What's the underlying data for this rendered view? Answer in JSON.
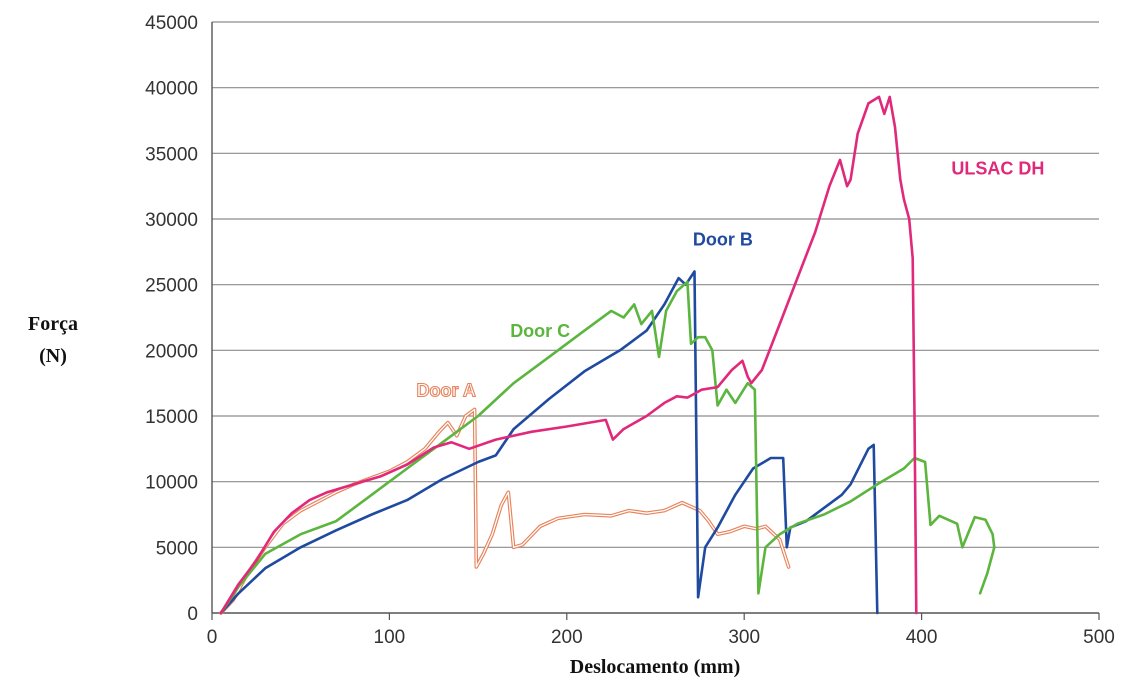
{
  "chart_data": {
    "type": "line",
    "xlabel": "Deslocamento (mm)",
    "ylabel_lines": [
      "Força",
      "(N)"
    ],
    "xlim": [
      0,
      500
    ],
    "ylim": [
      0,
      45000
    ],
    "x_ticks": [
      "0",
      "100",
      "200",
      "300",
      "400",
      "500"
    ],
    "y_ticks": [
      "0",
      "5000",
      "10000",
      "15000",
      "20000",
      "25000",
      "30000",
      "35000",
      "40000",
      "45000"
    ],
    "grid": "horizontal",
    "series": [
      {
        "name": "Door A",
        "color": "#E8825A",
        "style": "double",
        "points": [
          [
            5,
            0
          ],
          [
            12,
            1000
          ],
          [
            20,
            3000
          ],
          [
            30,
            5000
          ],
          [
            40,
            6800
          ],
          [
            50,
            7800
          ],
          [
            60,
            8500
          ],
          [
            70,
            9200
          ],
          [
            80,
            9800
          ],
          [
            90,
            10300
          ],
          [
            100,
            10800
          ],
          [
            110,
            11500
          ],
          [
            120,
            12500
          ],
          [
            128,
            13800
          ],
          [
            133,
            14500
          ],
          [
            138,
            13500
          ],
          [
            143,
            15000
          ],
          [
            148,
            15500
          ],
          [
            149,
            3500
          ],
          [
            153,
            4500
          ],
          [
            158,
            6000
          ],
          [
            163,
            8200
          ],
          [
            167,
            9200
          ],
          [
            170,
            5000
          ],
          [
            175,
            5200
          ],
          [
            185,
            6600
          ],
          [
            195,
            7200
          ],
          [
            210,
            7500
          ],
          [
            225,
            7400
          ],
          [
            235,
            7800
          ],
          [
            245,
            7600
          ],
          [
            255,
            7800
          ],
          [
            265,
            8400
          ],
          [
            275,
            7800
          ],
          [
            280,
            7000
          ],
          [
            285,
            6000
          ],
          [
            292,
            6200
          ],
          [
            300,
            6600
          ],
          [
            307,
            6400
          ],
          [
            312,
            6600
          ],
          [
            320,
            5600
          ],
          [
            325,
            3500
          ]
        ]
      },
      {
        "name": "Door B",
        "color": "#1F4AA0",
        "style": "solid",
        "points": [
          [
            5,
            0
          ],
          [
            15,
            1500
          ],
          [
            30,
            3400
          ],
          [
            50,
            5000
          ],
          [
            70,
            6300
          ],
          [
            90,
            7500
          ],
          [
            110,
            8600
          ],
          [
            130,
            10200
          ],
          [
            150,
            11500
          ],
          [
            160,
            12000
          ],
          [
            170,
            14000
          ],
          [
            190,
            16300
          ],
          [
            210,
            18400
          ],
          [
            230,
            20000
          ],
          [
            245,
            21500
          ],
          [
            255,
            23500
          ],
          [
            263,
            25500
          ],
          [
            267,
            25000
          ],
          [
            272,
            26000
          ],
          [
            274,
            1200
          ],
          [
            278,
            5000
          ],
          [
            285,
            6500
          ],
          [
            295,
            9000
          ],
          [
            305,
            11000
          ],
          [
            315,
            11800
          ],
          [
            322,
            11800
          ],
          [
            324,
            5000
          ],
          [
            326,
            6500
          ],
          [
            335,
            7000
          ],
          [
            345,
            8000
          ],
          [
            355,
            9000
          ],
          [
            360,
            9800
          ],
          [
            370,
            12500
          ],
          [
            373,
            12800
          ],
          [
            375,
            0
          ]
        ]
      },
      {
        "name": "Door C",
        "color": "#5BB53E",
        "style": "solid",
        "points": [
          [
            5,
            0
          ],
          [
            15,
            2000
          ],
          [
            30,
            4500
          ],
          [
            50,
            6000
          ],
          [
            70,
            7000
          ],
          [
            90,
            9000
          ],
          [
            110,
            11000
          ],
          [
            130,
            13000
          ],
          [
            150,
            15000
          ],
          [
            170,
            17500
          ],
          [
            190,
            19500
          ],
          [
            210,
            21500
          ],
          [
            225,
            23000
          ],
          [
            232,
            22500
          ],
          [
            238,
            23500
          ],
          [
            242,
            22000
          ],
          [
            248,
            23000
          ],
          [
            252,
            19500
          ],
          [
            256,
            23000
          ],
          [
            262,
            24500
          ],
          [
            268,
            25200
          ],
          [
            270,
            20500
          ],
          [
            274,
            21000
          ],
          [
            278,
            21000
          ],
          [
            282,
            20000
          ],
          [
            285,
            15800
          ],
          [
            290,
            17000
          ],
          [
            295,
            16000
          ],
          [
            302,
            17500
          ],
          [
            306,
            17000
          ],
          [
            308,
            1500
          ],
          [
            312,
            5000
          ],
          [
            320,
            6000
          ],
          [
            330,
            6800
          ],
          [
            345,
            7500
          ],
          [
            360,
            8500
          ],
          [
            375,
            9800
          ],
          [
            390,
            11000
          ],
          [
            396,
            11800
          ],
          [
            402,
            11500
          ],
          [
            405,
            6700
          ],
          [
            410,
            7400
          ],
          [
            420,
            6800
          ],
          [
            423,
            5000
          ],
          [
            430,
            7300
          ],
          [
            436,
            7100
          ],
          [
            440,
            6000
          ],
          [
            441,
            5000
          ],
          [
            437,
            3000
          ],
          [
            433,
            1500
          ]
        ]
      },
      {
        "name": "ULSAC DH",
        "color": "#E0297A",
        "style": "solid",
        "points": [
          [
            5,
            0
          ],
          [
            15,
            2200
          ],
          [
            25,
            4000
          ],
          [
            35,
            6200
          ],
          [
            45,
            7600
          ],
          [
            55,
            8600
          ],
          [
            65,
            9200
          ],
          [
            80,
            9800
          ],
          [
            95,
            10400
          ],
          [
            110,
            11300
          ],
          [
            125,
            12600
          ],
          [
            135,
            13000
          ],
          [
            145,
            12500
          ],
          [
            160,
            13200
          ],
          [
            180,
            13800
          ],
          [
            200,
            14200
          ],
          [
            222,
            14700
          ],
          [
            226,
            13200
          ],
          [
            232,
            14000
          ],
          [
            245,
            15000
          ],
          [
            255,
            16000
          ],
          [
            262,
            16500
          ],
          [
            268,
            16400
          ],
          [
            276,
            17000
          ],
          [
            285,
            17200
          ],
          [
            293,
            18500
          ],
          [
            299,
            19200
          ],
          [
            302,
            18000
          ],
          [
            304,
            17500
          ],
          [
            310,
            18500
          ],
          [
            320,
            22000
          ],
          [
            330,
            25500
          ],
          [
            340,
            29000
          ],
          [
            348,
            32500
          ],
          [
            354,
            34500
          ],
          [
            358,
            32500
          ],
          [
            360,
            33000
          ],
          [
            364,
            36500
          ],
          [
            370,
            38800
          ],
          [
            376,
            39300
          ],
          [
            379,
            38000
          ],
          [
            382,
            39300
          ],
          [
            385,
            37000
          ],
          [
            388,
            33000
          ],
          [
            390,
            31500
          ],
          [
            393,
            30000
          ],
          [
            395,
            27000
          ],
          [
            396,
            15000
          ],
          [
            397,
            0
          ]
        ]
      }
    ],
    "annotations": [
      {
        "text": "Door A",
        "series": "Door A",
        "x": 132,
        "y": 16500
      },
      {
        "text": "Door B",
        "series": "Door B",
        "x": 288,
        "y": 28000
      },
      {
        "text": "Door C",
        "series": "Door C",
        "x": 185,
        "y": 21000
      },
      {
        "text": "ULSAC DH",
        "series": "ULSAC DH",
        "x": 443,
        "y": 33400
      }
    ]
  }
}
